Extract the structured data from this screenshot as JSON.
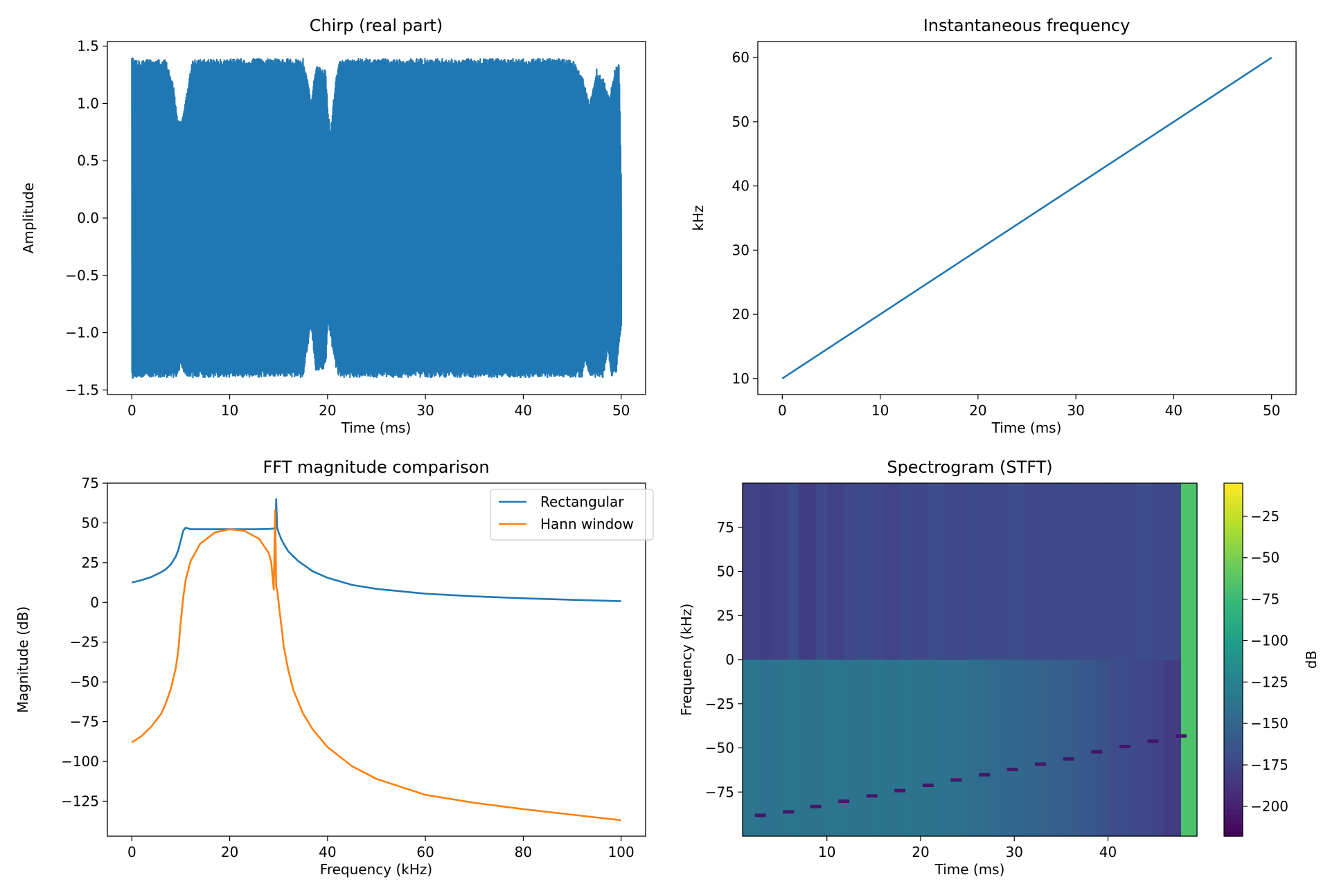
{
  "chart_data": [
    {
      "type": "line",
      "title": "Chirp (real part)",
      "xlabel": "Time (ms)",
      "ylabel": "Amplitude",
      "xlim": [
        -2.5,
        52.5
      ],
      "ylim": [
        -1.54,
        1.54
      ],
      "xticks": [
        0,
        10,
        20,
        30,
        40,
        50
      ],
      "xtick_labels": [
        "0",
        "10",
        "20",
        "30",
        "40",
        "50"
      ],
      "yticks": [
        -1.5,
        -1.0,
        -0.5,
        0.0,
        0.5,
        1.0,
        1.5
      ],
      "ytick_labels": [
        "−1.5",
        "−1.0",
        "−0.5",
        "0.0",
        "0.5",
        "1.0",
        "1.5"
      ],
      "series": [
        {
          "color": "#1f77b4",
          "x": [
            0,
            50
          ],
          "envelope_upper_x": [
            0,
            0.2,
            3.5,
            4.2,
            4.6,
            5.0,
            5.6,
            6.2,
            10,
            17.5,
            18.0,
            18.3,
            18.8,
            19.8,
            20.0,
            20.3,
            20.8,
            21.2,
            22,
            30,
            40,
            45,
            46.2,
            46.8,
            47.5,
            48.3,
            48.8,
            49.3,
            49.8,
            50.0
          ],
          "envelope_upper": [
            1.4,
            1.39,
            1.38,
            1.2,
            0.9,
            0.83,
            1.1,
            1.38,
            1.39,
            1.39,
            1.2,
            1.0,
            1.33,
            1.3,
            1.0,
            0.75,
            1.2,
            1.38,
            1.39,
            1.39,
            1.39,
            1.39,
            1.2,
            1.0,
            1.3,
            1.2,
            1.05,
            1.28,
            1.38,
            0.4
          ],
          "envelope_lower_x": [
            0,
            0.3,
            4.5,
            5.0,
            5.6,
            10,
            17.5,
            18.0,
            18.3,
            18.8,
            19.8,
            20.0,
            20.3,
            20.8,
            21.2,
            22,
            30,
            40,
            46.0,
            46.3,
            46.8,
            47.3,
            48.2,
            48.6,
            49.0,
            49.5,
            49.8,
            50.0
          ],
          "envelope_lower": [
            -1.4,
            -1.39,
            -1.39,
            -1.3,
            -1.39,
            -1.39,
            -1.39,
            -1.1,
            -0.95,
            -1.35,
            -1.3,
            -0.9,
            -1.05,
            -1.3,
            -1.39,
            -1.39,
            -1.39,
            -1.39,
            -1.39,
            -1.25,
            -1.39,
            -1.39,
            -1.39,
            -1.15,
            -1.39,
            -1.35,
            -1.1,
            -1.0
          ]
        }
      ]
    },
    {
      "type": "line",
      "title": "Instantaneous frequency",
      "xlabel": "Time (ms)",
      "ylabel": "kHz",
      "xlim": [
        -2.5,
        52.5
      ],
      "ylim": [
        7.5,
        62.5
      ],
      "xticks": [
        0,
        10,
        20,
        30,
        40,
        50
      ],
      "xtick_labels": [
        "0",
        "10",
        "20",
        "30",
        "40",
        "50"
      ],
      "yticks": [
        10,
        20,
        30,
        40,
        50,
        60
      ],
      "ytick_labels": [
        "10",
        "20",
        "30",
        "40",
        "50",
        "60"
      ],
      "series": [
        {
          "color": "#1f77b4",
          "x": [
            0,
            50
          ],
          "y": [
            10,
            60
          ]
        }
      ]
    },
    {
      "type": "line",
      "title": "FFT magnitude comparison",
      "xlabel": "Frequency (kHz)",
      "ylabel": "Magnitude (dB)",
      "xlim": [
        -5,
        105
      ],
      "ylim": [
        -147,
        75
      ],
      "xticks": [
        0,
        20,
        40,
        60,
        80,
        100
      ],
      "xtick_labels": [
        "0",
        "20",
        "40",
        "60",
        "80",
        "100"
      ],
      "yticks": [
        -125,
        -100,
        -75,
        -50,
        -25,
        0,
        25,
        50,
        75
      ],
      "ytick_labels": [
        "−125",
        "−100",
        "−75",
        "−50",
        "−25",
        "0",
        "25",
        "50",
        "75"
      ],
      "legend_position": "upper right",
      "series": [
        {
          "name": "Rectangular",
          "color": "#1f77b4",
          "x": [
            0,
            2,
            4,
            6,
            7,
            8,
            9,
            9.5,
            10,
            10.5,
            11,
            11.5,
            12,
            15,
            20,
            25,
            28,
            29,
            29.2,
            29.4,
            29.5,
            29.7,
            30,
            30.5,
            31,
            32,
            34,
            37,
            40,
            45,
            50,
            60,
            70,
            80,
            90,
            100
          ],
          "y": [
            12.5,
            14,
            16,
            19,
            21,
            24,
            29,
            33,
            39,
            45,
            47,
            46.5,
            46,
            46,
            46,
            46,
            46.2,
            46.5,
            47,
            46,
            65,
            47,
            44,
            40,
            37,
            32,
            26,
            19.5,
            15.5,
            11,
            8.5,
            5.5,
            3.8,
            2.6,
            1.6,
            0.8
          ]
        },
        {
          "name": "Hann window",
          "color": "#ff7f0e",
          "x": [
            0,
            2,
            4,
            6,
            7,
            8,
            9,
            9.5,
            10,
            10.5,
            11,
            12,
            14,
            17,
            20,
            23,
            26,
            28,
            28.5,
            29,
            29.3,
            29.5,
            29.7,
            30,
            30.3,
            30.7,
            31,
            32,
            33,
            35,
            37,
            40,
            45,
            50,
            60,
            70,
            80,
            90,
            100
          ],
          "y": [
            -88,
            -84,
            -78,
            -70,
            -63,
            -54,
            -41,
            -30,
            -12,
            3,
            14,
            26,
            37,
            44,
            46,
            45,
            40,
            31,
            25,
            8,
            58,
            10,
            8,
            0,
            -8,
            -18,
            -27,
            -43,
            -55,
            -70,
            -80,
            -91,
            -103,
            -111,
            -121,
            -126,
            -130,
            -133.5,
            -137
          ]
        }
      ]
    },
    {
      "type": "heatmap",
      "title": "Spectrogram (STFT)",
      "xlabel": "Time (ms)",
      "ylabel": "Frequency (kHz)",
      "xlim": [
        1.0,
        49.5
      ],
      "ylim": [
        -100,
        100
      ],
      "xticks": [
        10,
        20,
        30,
        40
      ],
      "xtick_labels": [
        "10",
        "20",
        "30",
        "40"
      ],
      "yticks": [
        -75,
        -50,
        -25,
        0,
        25,
        50,
        75
      ],
      "ytick_labels": [
        "−75",
        "−50",
        "−25",
        "0",
        "25",
        "50",
        "75"
      ],
      "colorbar_label": "dB",
      "colorbar_range": [
        -218,
        -5
      ],
      "colorbar_ticks": [
        -200,
        -175,
        -150,
        -125,
        -100,
        -75,
        -50,
        -25
      ],
      "colorbar_tick_labels": [
        "−200",
        "−175",
        "−150",
        "−125",
        "−100",
        "−75",
        "−50",
        "−25"
      ],
      "colormap": "viridis",
      "time_edges": [
        1.0,
        2.9,
        4.0,
        5.9,
        7.0,
        8.8,
        10.0,
        11.8,
        13.0,
        14.8,
        16.0,
        17.8,
        19.0,
        20.8,
        22.0,
        23.8,
        25.0,
        26.8,
        28.0,
        29.8,
        31.0,
        32.8,
        34.0,
        35.8,
        37.0,
        38.8,
        40.0,
        41.8,
        43.0,
        44.8,
        46.0,
        47.8,
        49.5
      ],
      "upper_db": [
        -175,
        -178,
        -176,
        -168,
        -180,
        -170,
        -176,
        -172,
        -170,
        -172,
        -174,
        -171,
        -173,
        -168,
        -170,
        -172,
        -169,
        -171,
        -170,
        -168,
        -172,
        -170,
        -169,
        -170,
        -171,
        -169,
        -170,
        -170,
        -168,
        -170,
        -170,
        -65
      ],
      "lower_db": [
        -135,
        -138,
        -136,
        -134,
        -137,
        -136,
        -135,
        -137,
        -136,
        -134,
        -136,
        -135,
        -137,
        -136,
        -138,
        -140,
        -142,
        -144,
        -146,
        -148,
        -150,
        -152,
        -154,
        -156,
        -160,
        -165,
        -168,
        -170,
        -172,
        -175,
        -180,
        -65
      ],
      "ridge_x": [
        2.9,
        5.9,
        8.8,
        11.8,
        14.8,
        17.8,
        20.8,
        23.8,
        26.8,
        29.8,
        32.8,
        35.8,
        38.8,
        41.8,
        44.8,
        47.8
      ],
      "ridge_y": [
        -88,
        -86,
        -83,
        -80,
        -77,
        -74,
        -71,
        -68,
        -65,
        -62,
        -59,
        -56,
        -52,
        -49,
        -46,
        -43
      ],
      "ridge_db": -205
    }
  ]
}
